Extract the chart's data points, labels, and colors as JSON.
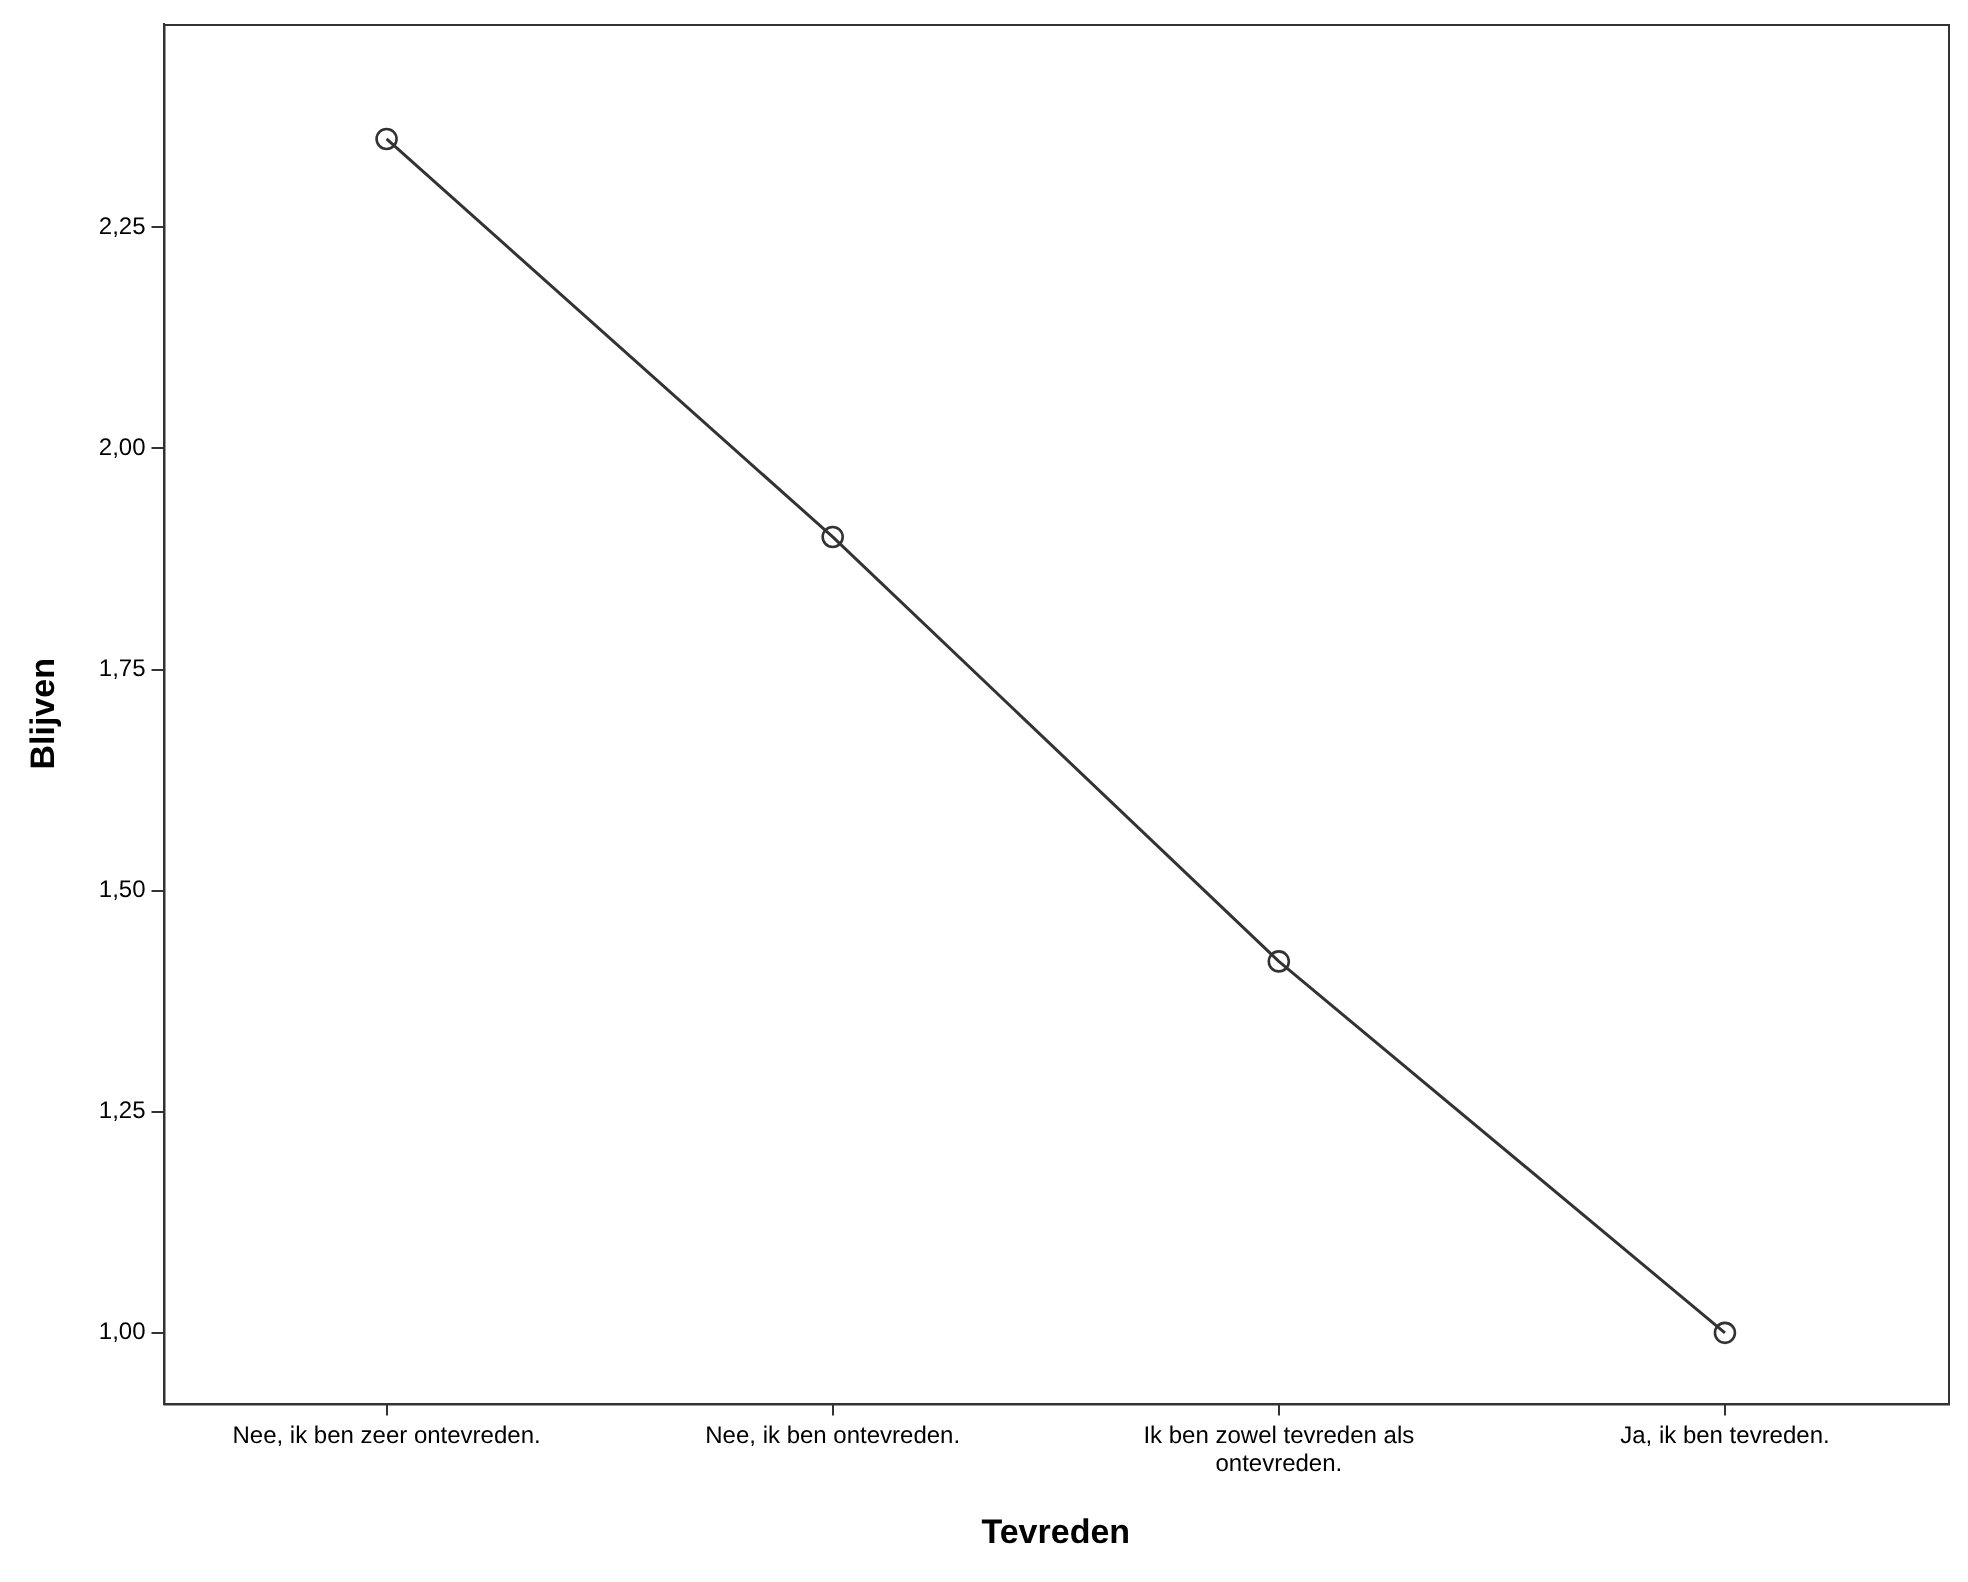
{
  "chart_data": {
    "type": "line",
    "xlabel": "Tevreden",
    "ylabel": "Blijven",
    "categories": [
      "Nee, ik ben zeer ontevreden.",
      "Nee, ik ben ontevreden.",
      "Ik ben zowel tevreden als ontevreden.",
      "Ja, ik ben tevreden."
    ],
    "series": [
      {
        "color": "#333333",
        "values": [
          2.35,
          1.9,
          1.42,
          1.0
        ]
      }
    ],
    "ylim": [
      0.92,
      2.48
    ],
    "yticks": [
      {
        "value": 1,
        "label": "1,00"
      },
      {
        "value": 1.25,
        "label": "1,25"
      },
      {
        "value": 1.5,
        "label": "1,50"
      },
      {
        "value": 1.75,
        "label": "1,75"
      },
      {
        "value": 2,
        "label": "2,00"
      },
      {
        "value": 2.25,
        "label": "2,25"
      }
    ],
    "grid": false,
    "legend": false,
    "marker": "circle",
    "line_style": "solid"
  }
}
